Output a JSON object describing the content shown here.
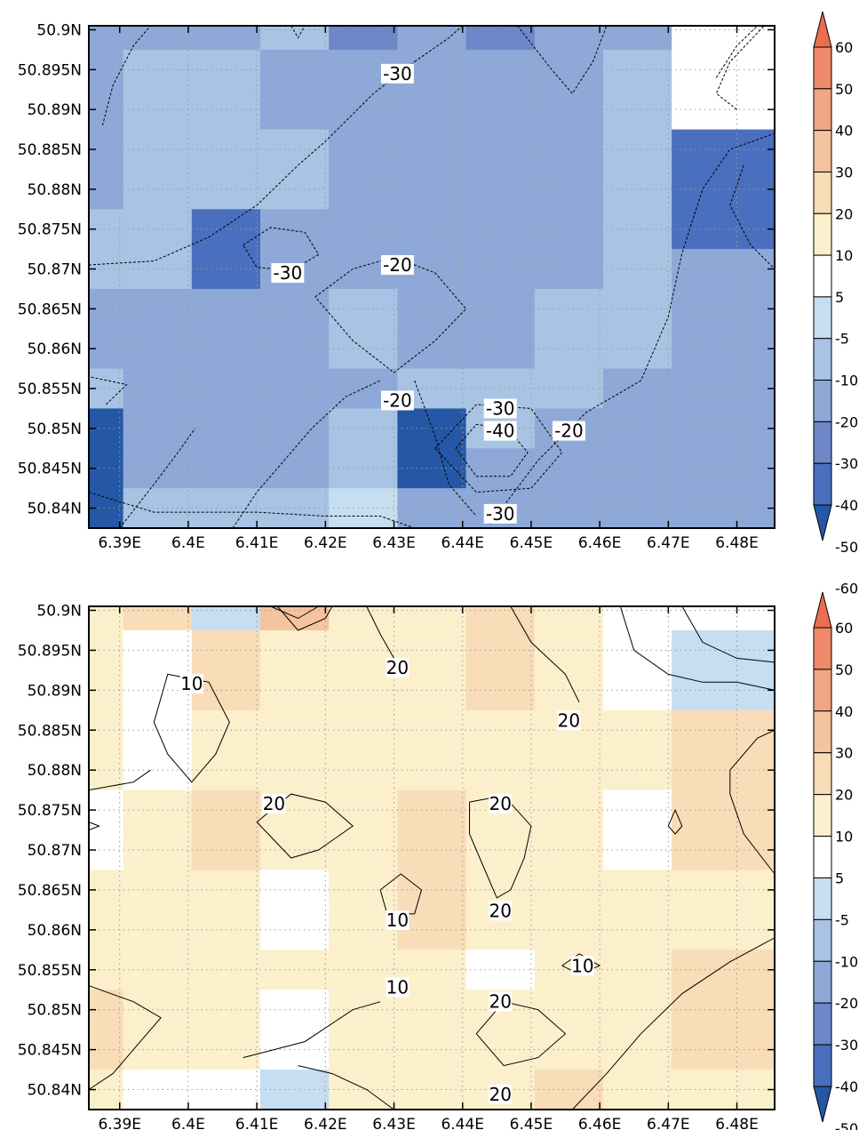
{
  "chart_data": [
    {
      "type": "heatmap",
      "panel": "top",
      "x_ticks": [
        "6.39E",
        "6.4E",
        "6.41E",
        "6.42E",
        "6.43E",
        "6.44E",
        "6.45E",
        "6.46E",
        "6.47E",
        "6.48E"
      ],
      "y_ticks": [
        "50.9N",
        "50.895N",
        "50.89N",
        "50.885N",
        "50.88N",
        "50.875N",
        "50.87N",
        "50.865N",
        "50.86N",
        "50.855N",
        "50.85N",
        "50.845N",
        "50.84N"
      ],
      "xlim": [
        6.3855,
        6.4855
      ],
      "ylim": [
        50.8375,
        50.9005
      ],
      "grid": true,
      "cell_grid": {
        "x_edges": [
          6.3855,
          6.3905,
          6.4005,
          6.4105,
          6.4205,
          6.4305,
          6.4405,
          6.4505,
          6.4605,
          6.4705,
          6.4855
        ],
        "y_edges": [
          50.9005,
          50.8975,
          50.8925,
          50.8875,
          50.8825,
          50.8775,
          50.8725,
          50.8675,
          50.8625,
          50.8575,
          50.8525,
          50.8475,
          50.8425,
          50.8375
        ],
        "values": [
          [
            -20,
            -20,
            -20,
            -10,
            -30,
            -20,
            -30,
            -20,
            -20,
            5
          ],
          [
            -20,
            -10,
            -10,
            -20,
            -20,
            -20,
            -20,
            -20,
            -10,
            5
          ],
          [
            -20,
            -10,
            -10,
            -20,
            -20,
            -20,
            -20,
            -20,
            -10,
            5
          ],
          [
            -20,
            -10,
            -10,
            -10,
            -20,
            -20,
            -20,
            -20,
            -10,
            -40
          ],
          [
            -20,
            -10,
            -10,
            -10,
            -20,
            -20,
            -20,
            -20,
            -10,
            -40
          ],
          [
            -10,
            -10,
            -40,
            -20,
            -20,
            -20,
            -20,
            -20,
            -10,
            -40
          ],
          [
            -10,
            -10,
            -40,
            -20,
            -20,
            -20,
            -20,
            -20,
            -10,
            -20
          ],
          [
            -20,
            -20,
            -20,
            -20,
            -10,
            -20,
            -20,
            -10,
            -10,
            -20
          ],
          [
            -20,
            -20,
            -20,
            -20,
            -10,
            -20,
            -20,
            -10,
            -10,
            -20
          ],
          [
            -10,
            -20,
            -20,
            -20,
            -20,
            -10,
            -10,
            -10,
            -20,
            -20
          ],
          [
            -50,
            -20,
            -20,
            -20,
            -10,
            -50,
            -10,
            -20,
            -20,
            -20
          ],
          [
            -50,
            -20,
            -20,
            -20,
            -10,
            -50,
            -20,
            -20,
            -20,
            -20
          ],
          [
            -50,
            -10,
            -10,
            -10,
            -5,
            -20,
            -20,
            -20,
            -20,
            -20
          ]
        ]
      },
      "contour_labels": [
        "-30",
        "-30",
        "-20",
        "-20",
        "-30",
        "-40",
        "-20",
        "-30"
      ]
    },
    {
      "type": "heatmap",
      "panel": "bottom",
      "x_ticks": [
        "6.39E",
        "6.4E",
        "6.41E",
        "6.42E",
        "6.43E",
        "6.44E",
        "6.45E",
        "6.46E",
        "6.47E",
        "6.48E"
      ],
      "y_ticks": [
        "50.9N",
        "50.895N",
        "50.89N",
        "50.885N",
        "50.88N",
        "50.875N",
        "50.87N",
        "50.865N",
        "50.86N",
        "50.855N",
        "50.85N",
        "50.845N",
        "50.84N"
      ],
      "xlim": [
        6.3855,
        6.4855
      ],
      "ylim": [
        50.8375,
        50.9005
      ],
      "grid": true,
      "cell_grid": {
        "x_edges": [
          6.3855,
          6.3905,
          6.4005,
          6.4105,
          6.4205,
          6.4305,
          6.4405,
          6.4505,
          6.4605,
          6.4705,
          6.4855
        ],
        "y_edges": [
          50.9005,
          50.8975,
          50.8925,
          50.8875,
          50.8825,
          50.8775,
          50.8725,
          50.8675,
          50.8625,
          50.8575,
          50.8525,
          50.8475,
          50.8425,
          50.8375
        ],
        "values": [
          [
            10,
            20,
            -5,
            30,
            10,
            10,
            20,
            10,
            5,
            5
          ],
          [
            10,
            5,
            20,
            10,
            10,
            10,
            20,
            10,
            5,
            -5
          ],
          [
            10,
            5,
            20,
            10,
            10,
            10,
            20,
            10,
            5,
            -5
          ],
          [
            10,
            5,
            10,
            10,
            10,
            10,
            10,
            10,
            10,
            20
          ],
          [
            10,
            5,
            10,
            10,
            10,
            10,
            10,
            10,
            10,
            20
          ],
          [
            5,
            10,
            20,
            10,
            10,
            20,
            10,
            10,
            5,
            20
          ],
          [
            5,
            10,
            20,
            10,
            10,
            20,
            10,
            10,
            5,
            20
          ],
          [
            10,
            10,
            10,
            5,
            10,
            20,
            10,
            10,
            10,
            10
          ],
          [
            10,
            10,
            10,
            5,
            10,
            20,
            10,
            10,
            10,
            10
          ],
          [
            10,
            10,
            10,
            10,
            10,
            10,
            5,
            10,
            10,
            20
          ],
          [
            20,
            10,
            10,
            5,
            10,
            10,
            10,
            10,
            10,
            20
          ],
          [
            20,
            10,
            10,
            5,
            10,
            10,
            10,
            10,
            10,
            20
          ],
          [
            10,
            5,
            5,
            -5,
            10,
            10,
            10,
            20,
            10,
            10
          ]
        ]
      },
      "contour_labels": [
        "20",
        "10",
        "20",
        "20",
        "20",
        "20",
        "10",
        "20",
        "10",
        "20",
        "10",
        "20"
      ]
    }
  ],
  "colorbar": {
    "labels": [
      "60",
      "50",
      "40",
      "30",
      "20",
      "10",
      "5",
      "-5",
      "-10",
      "-20",
      "-30",
      "-40",
      "-50",
      "-60"
    ],
    "colors": [
      "#2458a6",
      "#4a6fbe",
      "#6d86c8",
      "#8ea8d8",
      "#a8c3e3",
      "#c7def0",
      "#ffffff",
      "#fcf0cc",
      "#f9dcb8",
      "#f5c39e",
      "#f1a683",
      "#ee8a69",
      "#eb6e4f"
    ],
    "scale_levels": [
      -60,
      -50,
      -40,
      -30,
      -20,
      -10,
      -5,
      5,
      10,
      20,
      30,
      40,
      50,
      60
    ]
  }
}
